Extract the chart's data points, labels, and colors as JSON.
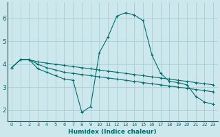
{
  "background_color": "#cde8ec",
  "grid_color": "#aacdd4",
  "line_color": "#006b6b",
  "xlabel": "Humidex (Indice chaleur)",
  "xlim": [
    -0.5,
    23.5
  ],
  "ylim": [
    1.5,
    6.7
  ],
  "yticks": [
    2,
    3,
    4,
    5,
    6
  ],
  "xticks": [
    0,
    1,
    2,
    3,
    4,
    5,
    6,
    7,
    8,
    9,
    10,
    11,
    12,
    13,
    14,
    15,
    16,
    17,
    18,
    19,
    20,
    21,
    22,
    23
  ],
  "lines": [
    {
      "x": [
        0,
        1,
        2,
        3,
        4,
        5,
        6,
        7,
        8,
        9,
        10,
        11,
        12,
        13,
        14,
        15,
        16,
        17,
        18,
        19,
        20,
        21,
        22,
        23
      ],
      "y": [
        3.85,
        4.2,
        4.2,
        4.1,
        4.05,
        4.0,
        3.95,
        3.9,
        3.85,
        3.8,
        3.75,
        3.7,
        3.65,
        3.6,
        3.55,
        3.5,
        3.45,
        3.4,
        3.35,
        3.3,
        3.25,
        3.2,
        3.15,
        3.1
      ]
    },
    {
      "x": [
        0,
        1,
        2,
        3,
        4,
        5,
        6,
        7,
        8,
        9,
        10,
        11,
        12,
        13,
        14,
        15,
        16,
        17,
        18,
        19,
        20,
        21,
        22,
        23
      ],
      "y": [
        3.85,
        4.2,
        4.2,
        4.0,
        3.85,
        3.75,
        3.65,
        3.6,
        3.55,
        3.5,
        3.45,
        3.4,
        3.35,
        3.3,
        3.25,
        3.2,
        3.15,
        3.1,
        3.05,
        3.0,
        2.95,
        2.9,
        2.85,
        2.8
      ]
    },
    {
      "x": [
        0,
        1,
        2,
        3,
        4,
        5,
        6,
        7,
        8,
        9,
        10,
        11,
        12,
        13,
        14,
        15,
        16,
        17,
        18,
        19,
        20,
        21,
        22,
        23
      ],
      "y": [
        3.85,
        4.2,
        4.2,
        3.8,
        3.65,
        3.5,
        3.35,
        3.3,
        1.9,
        2.15,
        4.5,
        5.2,
        6.1,
        6.25,
        6.15,
        5.9,
        4.4,
        3.6,
        3.25,
        3.2,
        3.1,
        2.6,
        2.35,
        2.25
      ]
    }
  ]
}
